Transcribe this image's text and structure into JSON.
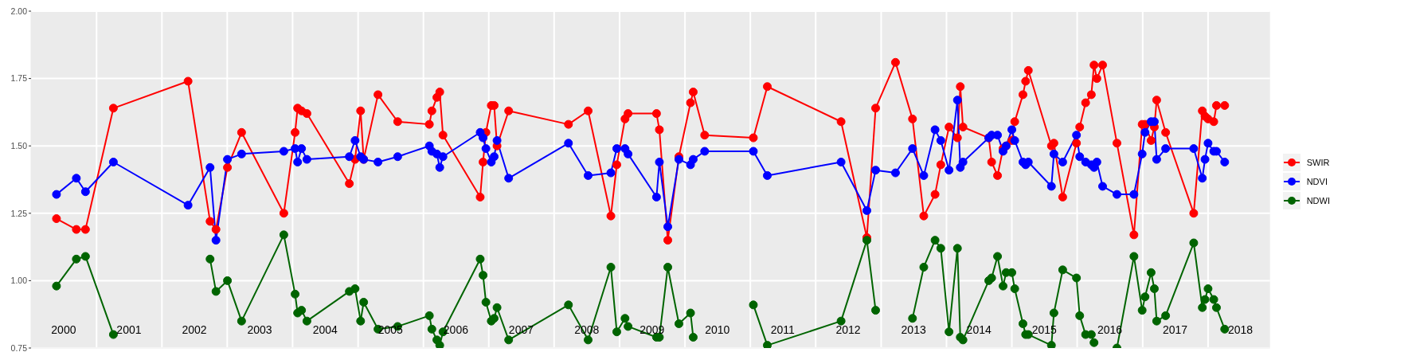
{
  "chart_data": {
    "type": "line",
    "marker": "circle",
    "grid": true,
    "legend": "right",
    "xlim": [
      "2000-01-01",
      "2018-12-13"
    ],
    "xticks": [
      {
        "value": "2000-07-01",
        "label": "2000"
      },
      {
        "value": "2001-07-01",
        "label": "2001"
      },
      {
        "value": "2002-07-01",
        "label": "2002"
      },
      {
        "value": "2003-07-01",
        "label": "2003"
      },
      {
        "value": "2004-07-01",
        "label": "2004"
      },
      {
        "value": "2005-07-01",
        "label": "2005"
      },
      {
        "value": "2006-07-01",
        "label": "2006"
      },
      {
        "value": "2007-07-01",
        "label": "2007"
      },
      {
        "value": "2008-07-01",
        "label": "2008"
      },
      {
        "value": "2009-07-01",
        "label": "2009"
      },
      {
        "value": "2010-07-01",
        "label": "2010"
      },
      {
        "value": "2011-07-01",
        "label": "2011"
      },
      {
        "value": "2012-07-01",
        "label": "2012"
      },
      {
        "value": "2013-07-01",
        "label": "2013"
      },
      {
        "value": "2014-07-01",
        "label": "2014"
      },
      {
        "value": "2015-07-01",
        "label": "2015"
      },
      {
        "value": "2016-07-01",
        "label": "2016"
      },
      {
        "value": "2017-07-01",
        "label": "2017"
      },
      {
        "value": "2018-07-01",
        "label": "2018"
      }
    ],
    "ylim": [
      0.75,
      2.0
    ],
    "yticks": [
      {
        "value": 0.75,
        "label": "0.75"
      },
      {
        "value": 1,
        "label": "1.00"
      },
      {
        "value": 1.25,
        "label": "1.25"
      },
      {
        "value": 1.5,
        "label": "1.50"
      },
      {
        "value": 1.75,
        "label": "1.75"
      },
      {
        "value": 2,
        "label": "2.00"
      }
    ],
    "x": [
      "2000-05-22",
      "2000-09-10",
      "2000-10-31",
      "2001-04-05",
      "2002-05-27",
      "2002-09-27",
      "2002-10-30",
      "2003-01-02",
      "2003-03-22",
      "2003-11-13",
      "2004-01-15",
      "2004-01-29",
      "2004-02-20",
      "2004-03-21",
      "2004-11-13",
      "2004-12-15",
      "2005-01-15",
      "2005-02-01",
      "2005-04-22",
      "2005-08-10",
      "2006-02-03",
      "2006-02-17",
      "2006-03-17",
      "2006-04-02",
      "2006-04-20",
      "2006-11-14",
      "2006-11-30",
      "2006-12-16",
      "2007-01-15",
      "2007-01-31",
      "2007-02-16",
      "2007-04-22",
      "2008-03-21",
      "2008-07-09",
      "2008-11-13",
      "2008-12-16",
      "2009-01-31",
      "2009-02-17",
      "2009-07-26",
      "2009-08-11",
      "2009-09-27",
      "2009-11-28",
      "2010-02-01",
      "2010-02-16",
      "2010-04-21",
      "2011-01-18",
      "2011-04-06",
      "2012-05-22",
      "2012-10-13",
      "2012-12-01",
      "2013-03-22",
      "2013-06-25",
      "2013-08-27",
      "2013-10-29",
      "2013-11-30",
      "2014-01-15",
      "2014-03-03",
      "2014-03-19",
      "2014-04-03",
      "2014-08-25",
      "2014-09-10",
      "2014-10-13",
      "2014-11-13",
      "2014-11-30",
      "2015-01-01",
      "2015-01-17",
      "2015-03-04",
      "2015-03-19",
      "2015-04-03",
      "2015-08-10",
      "2015-08-24",
      "2015-10-12",
      "2015-12-28",
      "2016-01-15",
      "2016-02-17",
      "2016-03-20",
      "2016-04-04",
      "2016-04-20",
      "2016-05-22",
      "2016-08-10",
      "2016-11-13",
      "2016-12-29",
      "2017-01-14",
      "2017-02-17",
      "2017-03-07",
      "2017-03-20",
      "2017-05-09",
      "2017-10-13",
      "2017-11-30",
      "2017-12-15",
      "2018-01-01",
      "2018-02-02",
      "2018-02-17",
      "2018-04-04"
    ],
    "series": [
      {
        "name": "SWIR",
        "color": "#ff0000",
        "values": [
          1.23,
          1.19,
          1.19,
          1.64,
          1.74,
          1.22,
          1.19,
          1.42,
          1.55,
          1.25,
          1.55,
          1.64,
          1.63,
          1.62,
          1.36,
          1.45,
          1.63,
          1.45,
          1.69,
          1.59,
          1.58,
          1.63,
          1.68,
          1.7,
          1.54,
          1.31,
          1.44,
          1.55,
          1.65,
          1.65,
          1.5,
          1.63,
          1.58,
          1.63,
          1.24,
          1.43,
          1.6,
          1.62,
          1.62,
          1.56,
          1.15,
          1.46,
          1.66,
          1.7,
          1.54,
          1.53,
          1.72,
          1.59,
          1.16,
          1.64,
          1.81,
          1.6,
          1.24,
          1.32,
          1.43,
          1.57,
          1.53,
          1.72,
          1.57,
          1.53,
          1.44,
          1.39,
          1.49,
          1.5,
          1.52,
          1.59,
          1.69,
          1.74,
          1.78,
          1.5,
          1.51,
          1.31,
          1.51,
          1.57,
          1.66,
          1.69,
          1.8,
          1.75,
          1.8,
          1.51,
          1.17,
          1.58,
          1.58,
          1.52,
          1.57,
          1.67,
          1.55,
          1.25,
          1.63,
          1.61,
          1.6,
          1.59,
          1.65,
          1.65
        ]
      },
      {
        "name": "NDVI",
        "color": "#0000ff",
        "values": [
          1.32,
          1.38,
          1.33,
          1.44,
          1.28,
          1.42,
          1.15,
          1.45,
          1.47,
          1.48,
          1.49,
          1.44,
          1.49,
          1.45,
          1.46,
          1.52,
          1.46,
          1.45,
          1.44,
          1.46,
          1.5,
          1.48,
          1.47,
          1.42,
          1.46,
          1.55,
          1.53,
          1.49,
          1.44,
          1.46,
          1.52,
          1.38,
          1.51,
          1.39,
          1.4,
          1.49,
          1.49,
          1.47,
          1.31,
          1.44,
          1.2,
          1.45,
          1.43,
          1.45,
          1.48,
          1.48,
          1.39,
          1.44,
          1.26,
          1.41,
          1.4,
          1.49,
          1.39,
          1.56,
          1.52,
          1.41,
          1.67,
          1.42,
          1.44,
          1.53,
          1.54,
          1.54,
          1.48,
          1.5,
          1.56,
          1.52,
          1.44,
          1.43,
          1.44,
          1.35,
          1.47,
          1.44,
          1.54,
          1.46,
          1.44,
          1.43,
          1.42,
          1.44,
          1.35,
          1.32,
          1.32,
          1.47,
          1.55,
          1.59,
          1.59,
          1.45,
          1.49,
          1.49,
          1.38,
          1.45,
          1.51,
          1.48,
          1.48,
          1.44
        ]
      },
      {
        "name": "NDWI",
        "color": "#006400",
        "values": [
          0.98,
          1.08,
          1.09,
          0.8,
          null,
          1.08,
          0.96,
          1.0,
          0.85,
          1.17,
          0.95,
          0.88,
          0.89,
          0.85,
          0.96,
          0.97,
          0.85,
          0.92,
          0.82,
          0.83,
          0.87,
          0.82,
          0.78,
          0.76,
          0.81,
          1.08,
          1.02,
          0.92,
          0.85,
          0.86,
          0.9,
          0.78,
          0.91,
          0.78,
          1.05,
          0.81,
          0.86,
          0.83,
          0.79,
          0.79,
          1.05,
          0.84,
          0.88,
          0.79,
          null,
          0.91,
          0.76,
          0.85,
          1.15,
          0.89,
          null,
          0.86,
          1.05,
          1.15,
          1.12,
          0.81,
          1.12,
          0.79,
          0.78,
          1.0,
          1.01,
          1.09,
          0.98,
          1.03,
          1.03,
          0.97,
          0.84,
          0.8,
          0.8,
          0.76,
          0.88,
          1.04,
          1.01,
          0.87,
          0.8,
          0.8,
          0.77,
          null,
          null,
          0.75,
          1.09,
          0.89,
          0.94,
          1.03,
          0.97,
          0.85,
          0.87,
          1.14,
          0.9,
          0.93,
          0.97,
          0.93,
          0.9,
          0.82
        ]
      }
    ]
  }
}
